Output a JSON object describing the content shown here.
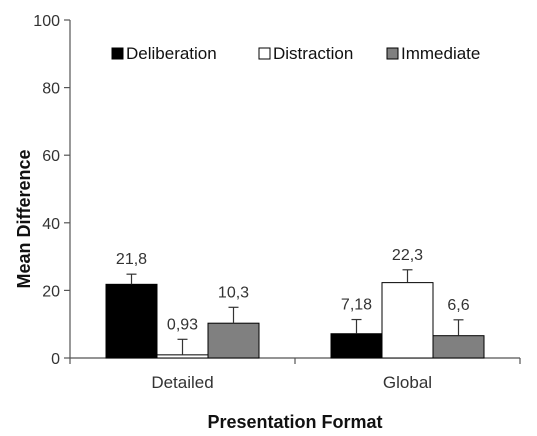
{
  "chart_data": {
    "type": "bar",
    "title": "",
    "xlabel": "Presentation Format",
    "ylabel": "Mean Difference",
    "ylim": [
      0,
      100
    ],
    "yticks": [
      "0",
      "20",
      "40",
      "60",
      "80",
      "100"
    ],
    "categories": [
      "Detailed",
      "Global"
    ],
    "legend_position": "top",
    "series": [
      {
        "name": "Deliberation",
        "color": "#000000",
        "values": [
          21.8,
          7.18
        ],
        "errors": [
          3.0,
          4.2
        ],
        "value_labels": [
          "21,8",
          "7,18"
        ]
      },
      {
        "name": "Distraction",
        "color": "#ffffff",
        "values": [
          0.93,
          22.3
        ],
        "errors": [
          4.6,
          3.8
        ],
        "value_labels": [
          "0,93",
          "22,3"
        ]
      },
      {
        "name": "Immediate",
        "color": "#808080",
        "values": [
          10.3,
          6.6
        ],
        "errors": [
          4.7,
          4.7
        ],
        "value_labels": [
          "10,3",
          "6,6"
        ]
      }
    ]
  }
}
